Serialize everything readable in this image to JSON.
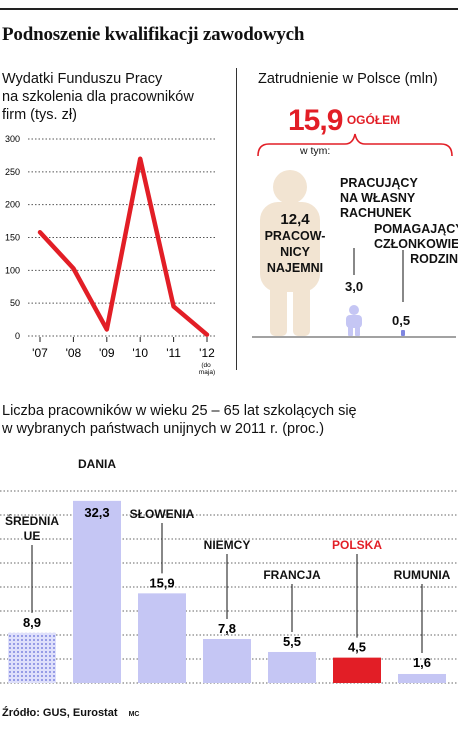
{
  "title": "Podnoszenie kwalifikacji zawodowych",
  "colors": {
    "red": "#e21e26",
    "lavender": "#c5c6f4",
    "person": "#f2e4d2",
    "blue_dots": "#7f86e0"
  },
  "left_panel": {
    "heading_lines": [
      "Wydatki Funduszu Pracy",
      "na szkolenia dla pracowników",
      "firm (tys. zł)"
    ]
  },
  "right_panel": {
    "heading": "Zatrudnienie w Polsce (mln)",
    "total_value": "15,9",
    "total_label": "OGÓŁEM",
    "w_tym": "w tym:",
    "groups": [
      {
        "label_lines": [
          "12,4",
          "PRACOW-",
          "NICY",
          "NAJEMNI"
        ],
        "value": 12.4
      },
      {
        "label_lines": [
          "PRACUJĄCY",
          "NA WŁASNY",
          "RACHUNEK"
        ],
        "value_label": "3,0",
        "value": 3.0
      },
      {
        "label_lines": [
          "POMAGAJĄCY",
          "CZŁONKOWIE",
          "RODZIN"
        ],
        "value_label": "0,5",
        "value": 0.5
      }
    ]
  },
  "bottom_heading_lines": [
    "Liczba pracowników w wieku 25 – 65 lat szkolących się",
    "w wybranych państwach unijnych w 2011 r. (proc.)"
  ],
  "source": "Źródło: GUS, Eurostat",
  "credit": "MC",
  "chart_data": [
    {
      "type": "line",
      "title": "Wydatki Funduszu Pracy na szkolenia dla pracowników firm (tys. zł)",
      "categories": [
        "'07",
        "'08",
        "'09",
        "'10",
        "'11",
        "'12"
      ],
      "category_note": "(do maja)",
      "values": [
        158,
        103,
        10,
        270,
        45,
        2
      ],
      "ylim": [
        0,
        300
      ],
      "yticks": [
        0,
        50,
        100,
        150,
        200,
        250,
        300
      ],
      "color": "#e21e26",
      "grid": true
    },
    {
      "type": "bar",
      "categories": [
        "ŚREDNIA UE",
        "DANIA",
        "SŁOWENIA",
        "NIEMCY",
        "FRANCJA",
        "POLSKA",
        "RUMUNIA"
      ],
      "values": [
        8.9,
        32.3,
        15.9,
        7.8,
        5.5,
        4.5,
        1.6
      ],
      "value_labels": [
        "8,9",
        "32,3",
        "15,9",
        "7,8",
        "5,5",
        "4,5",
        "1,6"
      ],
      "highlight": "POLSKA",
      "ylim": [
        0,
        36
      ],
      "grid": true
    }
  ]
}
